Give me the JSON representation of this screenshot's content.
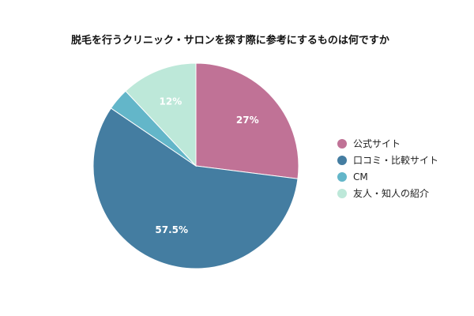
{
  "chart_data": {
    "type": "pie",
    "title": "脱毛を行うクリニック・サロンを探す際に参考にするものは何ですか",
    "legend_position": "right",
    "slices": [
      {
        "label": "公式サイト",
        "value": 27,
        "display": "27%",
        "color": "#c07296"
      },
      {
        "label": "口コミ・比較サイト",
        "value": 57.5,
        "display": "57.5%",
        "color": "#447da1"
      },
      {
        "label": "CM",
        "value": 3.5,
        "display": "",
        "color": "#63b6c9"
      },
      {
        "label": "友人・知人の紹介",
        "value": 12,
        "display": "12%",
        "color": "#bde8d9"
      }
    ]
  }
}
